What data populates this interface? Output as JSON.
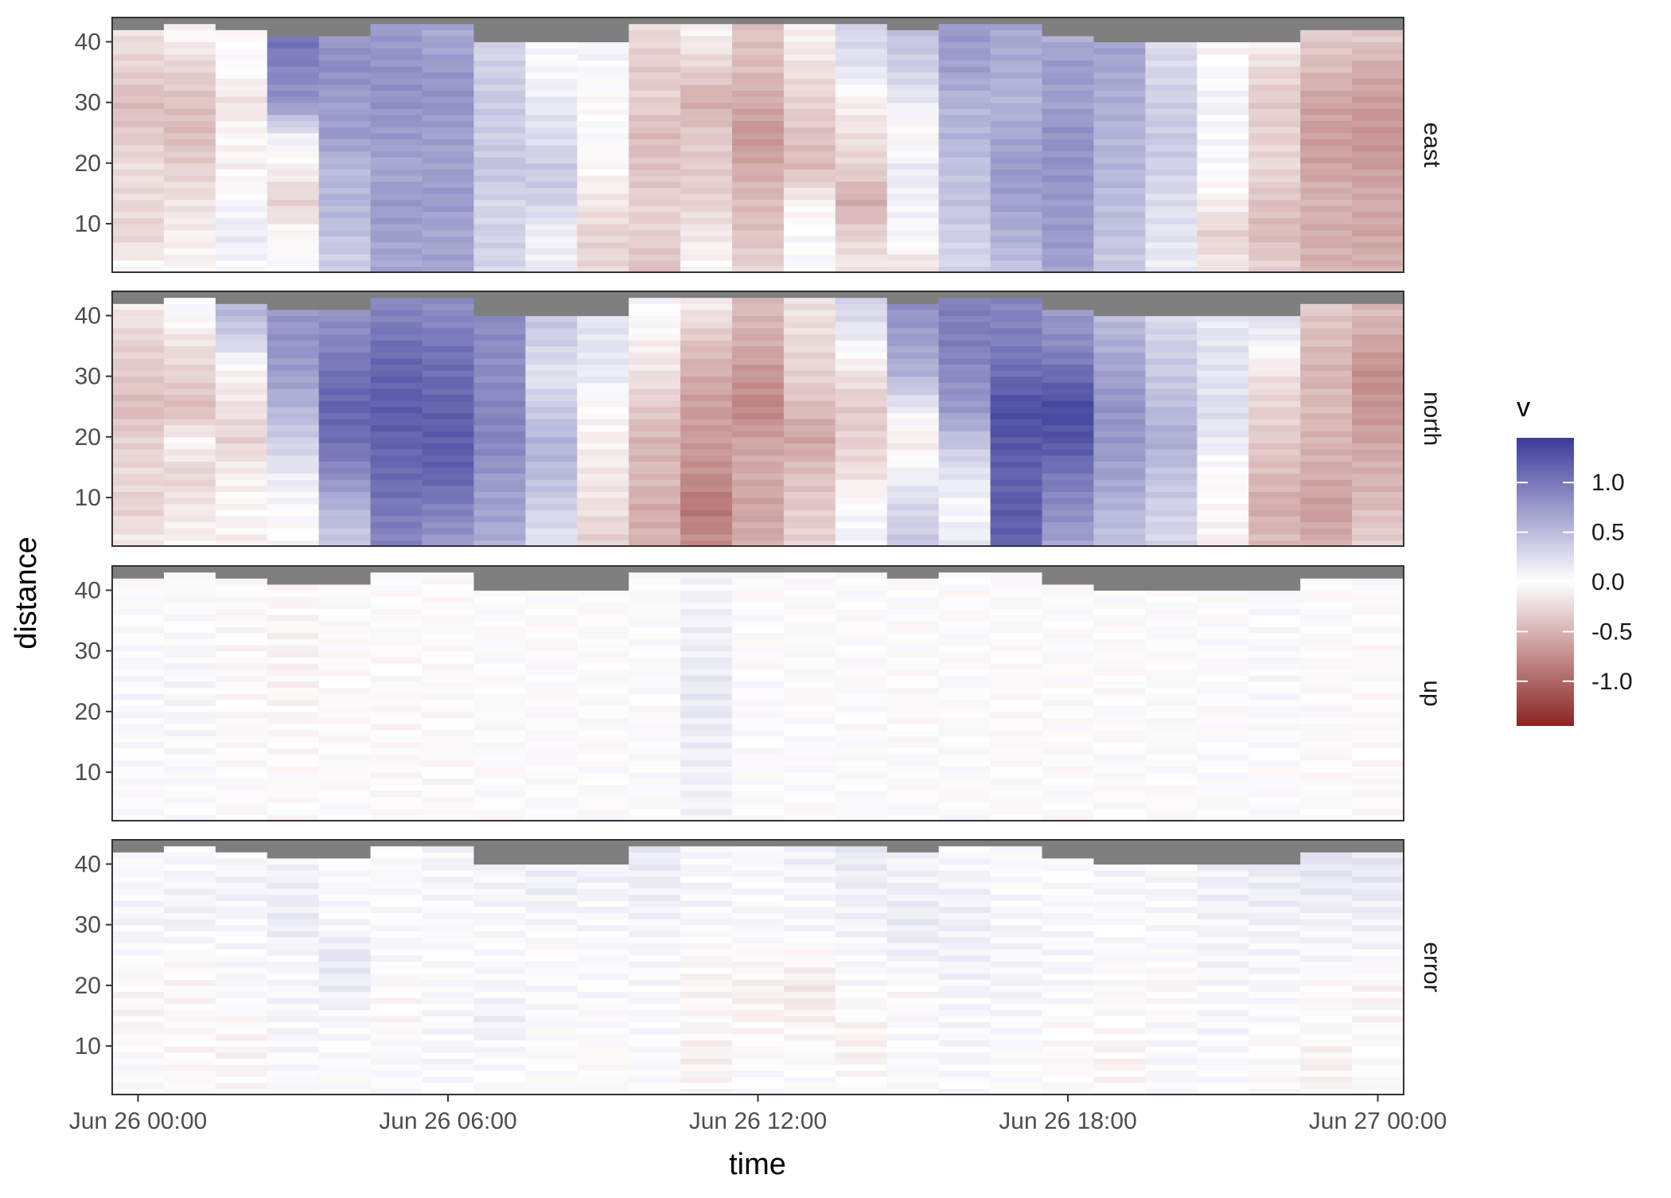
{
  "chart_data": {
    "type": "heatmap",
    "xlabel": "time",
    "ylabel": "distance",
    "x_ticks": [
      "Jun 26 00:00",
      "Jun 26 06:00",
      "Jun 26 12:00",
      "Jun 26 18:00",
      "Jun 27 00:00"
    ],
    "x_tick_hours": [
      0,
      6,
      12,
      18,
      24
    ],
    "x_range_hours": [
      -0.5,
      24.5
    ],
    "y_ticks": [
      10,
      20,
      30,
      40
    ],
    "y_range": [
      2,
      44
    ],
    "bin_height": 1,
    "ensemble_start_hours": [
      -0.5,
      0.5,
      1.5,
      2.5,
      3.5,
      4.5,
      5.5,
      6.5,
      7.5,
      8.5,
      9.5,
      10.5,
      11.5,
      12.5,
      13.5,
      14.5,
      15.5,
      16.5,
      17.5,
      18.5,
      19.5,
      20.5,
      21.5,
      22.5,
      23.5
    ],
    "ensemble_width_hours": 1,
    "valid_top": [
      41.5,
      42.5,
      41.5,
      40.5,
      40.5,
      42.5,
      42.5,
      39.5,
      39.5,
      39.5,
      42.5,
      42.5,
      42.5,
      42.5,
      42.5,
      41.5,
      42.5,
      42.5,
      40.5,
      39.5,
      39.5,
      39.5,
      39.5,
      41.5,
      41.5
    ],
    "na_color": "#7f7f7f",
    "legend": {
      "title": "v",
      "ticks": [
        1.0,
        0.5,
        0.0,
        -0.5,
        -1.0
      ],
      "tick_labels": [
        "1.0",
        "0.5",
        "0.0",
        "-0.5",
        "-1.0"
      ],
      "limits": [
        -1.45,
        1.45
      ],
      "colors": {
        "low": "#8b2323",
        "mid": "#ffffff",
        "high": "#3b3b9a"
      }
    },
    "facets": [
      {
        "label": "east",
        "profiles": [
          [
            -0.05,
            -0.28,
            -0.25,
            -0.22,
            -0.35,
            -0.45,
            -0.3,
            -0.2
          ],
          [
            -0.08,
            -0.1,
            -0.2,
            -0.3,
            -0.45,
            -0.4,
            -0.3,
            -0.05
          ],
          [
            0.05,
            0.15,
            0.05,
            -0.1,
            -0.05,
            -0.2,
            0.0,
            0.0
          ],
          [
            0.05,
            -0.05,
            -0.3,
            -0.1,
            0.15,
            0.8,
            0.9,
            1.05
          ],
          [
            0.35,
            0.45,
            0.55,
            0.5,
            0.75,
            0.7,
            0.85,
            0.75
          ],
          [
            0.65,
            0.7,
            0.75,
            0.65,
            0.75,
            0.8,
            0.8,
            0.75
          ],
          [
            0.7,
            0.65,
            0.75,
            0.7,
            0.7,
            0.8,
            0.75,
            0.65
          ],
          [
            0.3,
            0.35,
            0.3,
            0.45,
            0.35,
            0.4,
            0.35,
            0.3
          ],
          [
            0.15,
            0.1,
            0.35,
            0.4,
            0.25,
            0.15,
            0.05,
            0.05
          ],
          [
            -0.25,
            -0.3,
            -0.15,
            -0.05,
            0.05,
            -0.05,
            0.05,
            0.1
          ],
          [
            -0.4,
            -0.3,
            -0.3,
            -0.4,
            -0.45,
            -0.3,
            -0.35,
            -0.25
          ],
          [
            -0.05,
            -0.15,
            -0.3,
            -0.35,
            -0.35,
            -0.55,
            -0.3,
            -0.1
          ],
          [
            -0.3,
            -0.4,
            -0.45,
            -0.55,
            -0.7,
            -0.55,
            -0.45,
            -0.4
          ],
          [
            0.0,
            0.05,
            -0.1,
            -0.45,
            -0.4,
            -0.3,
            -0.2,
            -0.1
          ],
          [
            -0.15,
            -0.3,
            -0.55,
            -0.3,
            -0.2,
            -0.1,
            0.2,
            0.3
          ],
          [
            -0.2,
            0.05,
            0.1,
            0.15,
            -0.1,
            0.15,
            0.35,
            0.45
          ],
          [
            0.3,
            0.35,
            0.45,
            0.45,
            0.55,
            0.55,
            0.7,
            0.75
          ],
          [
            0.45,
            0.6,
            0.7,
            0.75,
            0.65,
            0.55,
            0.6,
            0.65
          ],
          [
            0.7,
            0.75,
            0.75,
            0.8,
            0.8,
            0.7,
            0.75,
            0.6
          ],
          [
            0.4,
            0.45,
            0.5,
            0.55,
            0.55,
            0.6,
            0.65,
            0.7
          ],
          [
            0.15,
            0.2,
            0.25,
            0.35,
            0.4,
            0.35,
            0.3,
            0.25
          ],
          [
            -0.15,
            -0.3,
            -0.1,
            0.05,
            0.05,
            0.1,
            0.0,
            -0.1
          ],
          [
            -0.3,
            -0.45,
            -0.4,
            -0.25,
            -0.3,
            -0.35,
            -0.25,
            -0.05
          ],
          [
            -0.5,
            -0.55,
            -0.5,
            -0.6,
            -0.65,
            -0.6,
            -0.45,
            -0.35
          ],
          [
            -0.5,
            -0.6,
            -0.55,
            -0.65,
            -0.7,
            -0.65,
            -0.55,
            -0.35
          ]
        ]
      },
      {
        "label": "north",
        "profiles": [
          [
            -0.15,
            -0.3,
            -0.25,
            -0.3,
            -0.45,
            -0.35,
            -0.3,
            -0.15
          ],
          [
            -0.1,
            -0.15,
            -0.3,
            -0.05,
            -0.45,
            -0.3,
            -0.2,
            0.05
          ],
          [
            -0.1,
            -0.05,
            -0.1,
            -0.3,
            -0.2,
            -0.1,
            0.3,
            0.55
          ],
          [
            -0.05,
            0.05,
            0.15,
            0.35,
            0.55,
            0.7,
            0.8,
            0.75
          ],
          [
            0.4,
            0.55,
            0.85,
            1.05,
            1.15,
            1.05,
            0.9,
            0.8
          ],
          [
            0.9,
            1.0,
            1.1,
            1.15,
            1.2,
            1.15,
            1.05,
            0.9
          ],
          [
            0.75,
            0.95,
            1.15,
            1.2,
            1.15,
            1.1,
            1.0,
            0.85
          ],
          [
            0.6,
            0.7,
            0.75,
            0.9,
            0.9,
            0.85,
            0.85,
            0.85
          ],
          [
            0.2,
            0.35,
            0.5,
            0.55,
            0.4,
            0.2,
            0.35,
            0.45
          ],
          [
            -0.3,
            -0.2,
            -0.15,
            -0.1,
            -0.05,
            0.15,
            0.2,
            0.2
          ],
          [
            -0.5,
            -0.55,
            -0.45,
            -0.5,
            -0.35,
            -0.2,
            -0.1,
            0.05
          ],
          [
            -0.75,
            -0.9,
            -0.75,
            -0.65,
            -0.65,
            -0.55,
            -0.4,
            -0.15
          ],
          [
            -0.55,
            -0.6,
            -0.55,
            -0.6,
            -0.8,
            -0.7,
            -0.55,
            -0.45
          ],
          [
            -0.3,
            -0.35,
            -0.4,
            -0.6,
            -0.45,
            -0.3,
            -0.25,
            -0.2
          ],
          [
            0.1,
            0.05,
            -0.2,
            -0.3,
            -0.35,
            -0.2,
            0.1,
            0.3
          ],
          [
            0.4,
            0.3,
            0.1,
            -0.15,
            0.15,
            0.55,
            0.7,
            0.8
          ],
          [
            0.15,
            0.05,
            0.2,
            0.45,
            0.75,
            0.85,
            0.95,
            0.95
          ],
          [
            1.15,
            1.2,
            1.15,
            1.25,
            1.3,
            1.1,
            0.95,
            0.9
          ],
          [
            0.7,
            0.85,
            1.0,
            1.25,
            1.35,
            1.1,
            0.85,
            0.75
          ],
          [
            0.45,
            0.55,
            0.7,
            0.75,
            0.8,
            0.7,
            0.6,
            0.45
          ],
          [
            0.3,
            0.35,
            0.45,
            0.6,
            0.5,
            0.4,
            0.35,
            0.25
          ],
          [
            -0.1,
            -0.05,
            0.0,
            0.15,
            0.25,
            0.2,
            0.2,
            0.15
          ],
          [
            -0.45,
            -0.55,
            -0.45,
            -0.35,
            -0.3,
            -0.2,
            0.1,
            0.25
          ],
          [
            -0.55,
            -0.65,
            -0.55,
            -0.5,
            -0.45,
            -0.5,
            -0.45,
            -0.35
          ],
          [
            -0.3,
            -0.45,
            -0.5,
            -0.6,
            -0.7,
            -0.75,
            -0.6,
            -0.45
          ]
        ]
      },
      {
        "label": "up",
        "profiles": [
          [
            0.01,
            0.02,
            0.03,
            0.04,
            0.05,
            0.03,
            0.02,
            0.01
          ],
          [
            0.01,
            0.02,
            0.04,
            0.05,
            0.06,
            0.04,
            0.02,
            0.01
          ],
          [
            -0.01,
            0.0,
            -0.02,
            -0.03,
            -0.03,
            -0.04,
            -0.03,
            -0.02
          ],
          [
            -0.01,
            -0.02,
            -0.03,
            -0.05,
            -0.08,
            -0.09,
            -0.06,
            -0.03
          ],
          [
            0.0,
            -0.01,
            -0.01,
            -0.02,
            -0.02,
            -0.02,
            -0.01,
            -0.01
          ],
          [
            -0.02,
            -0.03,
            -0.03,
            -0.03,
            -0.02,
            -0.02,
            -0.01,
            -0.01
          ],
          [
            -0.02,
            -0.03,
            -0.02,
            -0.02,
            -0.02,
            -0.01,
            -0.01,
            -0.01
          ],
          [
            0.0,
            0.01,
            0.01,
            0.01,
            0.0,
            0.01,
            0.0,
            0.0
          ],
          [
            0.0,
            0.01,
            0.01,
            0.0,
            0.01,
            0.0,
            0.0,
            0.0
          ],
          [
            0.0,
            0.01,
            0.0,
            0.01,
            0.0,
            0.0,
            0.0,
            0.0
          ],
          [
            0.0,
            0.01,
            0.01,
            0.02,
            0.02,
            0.01,
            0.01,
            0.0
          ],
          [
            0.08,
            0.1,
            0.12,
            0.15,
            0.16,
            0.12,
            0.1,
            0.08
          ],
          [
            0.0,
            0.01,
            0.01,
            0.02,
            0.02,
            0.01,
            0.01,
            0.0
          ],
          [
            0.0,
            0.02,
            0.02,
            0.01,
            0.01,
            0.01,
            0.0,
            0.0
          ],
          [
            0.01,
            0.01,
            0.02,
            0.02,
            0.01,
            0.01,
            0.0,
            0.0
          ],
          [
            0.0,
            0.0,
            0.0,
            -0.02,
            -0.02,
            -0.01,
            0.0,
            0.0
          ],
          [
            0.0,
            0.01,
            0.01,
            0.01,
            0.0,
            0.0,
            0.0,
            0.0
          ],
          [
            -0.01,
            -0.01,
            -0.02,
            -0.02,
            -0.02,
            -0.01,
            0.0,
            0.0
          ],
          [
            0.0,
            0.0,
            -0.01,
            -0.01,
            -0.01,
            0.0,
            0.0,
            0.0
          ],
          [
            -0.02,
            -0.02,
            -0.01,
            -0.01,
            -0.01,
            -0.01,
            0.0,
            0.0
          ],
          [
            0.0,
            0.01,
            0.01,
            0.01,
            0.01,
            0.0,
            0.0,
            0.0
          ],
          [
            0.0,
            0.01,
            0.01,
            0.01,
            0.0,
            0.01,
            0.0,
            0.0
          ],
          [
            0.0,
            0.01,
            0.02,
            0.03,
            0.04,
            0.04,
            0.03,
            0.03
          ],
          [
            0.0,
            -0.01,
            -0.01,
            -0.01,
            -0.01,
            0.0,
            0.0,
            0.0
          ],
          [
            -0.02,
            -0.03,
            -0.03,
            -0.02,
            -0.02,
            -0.02,
            -0.01,
            -0.01
          ]
        ]
      },
      {
        "label": "error",
        "profiles": [
          [
            0.02,
            0.04,
            -0.08,
            -0.06,
            0.03,
            0.08,
            0.05,
            0.02
          ],
          [
            0.0,
            -0.05,
            -0.03,
            -0.06,
            -0.02,
            0.1,
            0.08,
            0.05
          ],
          [
            -0.05,
            -0.08,
            -0.04,
            0.03,
            0.05,
            0.04,
            0.1,
            0.05
          ],
          [
            0.02,
            0.05,
            0.08,
            0.06,
            0.05,
            0.15,
            0.12,
            0.08
          ],
          [
            0.01,
            0.03,
            0.05,
            0.12,
            0.18,
            0.05,
            0.04,
            0.03
          ],
          [
            0.02,
            0.04,
            -0.04,
            -0.03,
            0.05,
            0.04,
            0.03,
            0.02
          ],
          [
            0.03,
            0.06,
            0.05,
            0.04,
            0.02,
            0.02,
            0.06,
            0.08
          ],
          [
            0.0,
            0.04,
            0.12,
            0.06,
            0.03,
            0.05,
            0.08,
            0.06
          ],
          [
            0.02,
            0.0,
            0.03,
            0.05,
            -0.04,
            0.06,
            0.12,
            0.1
          ],
          [
            0.01,
            -0.02,
            0.02,
            0.04,
            0.03,
            0.05,
            0.08,
            0.12
          ],
          [
            0.02,
            0.03,
            0.04,
            0.05,
            0.05,
            0.08,
            0.12,
            0.15
          ],
          [
            -0.06,
            -0.1,
            -0.04,
            -0.08,
            -0.05,
            0.05,
            0.07,
            0.05
          ],
          [
            0.02,
            0.03,
            -0.08,
            -0.1,
            -0.03,
            0.05,
            0.04,
            0.03
          ],
          [
            0.02,
            0.0,
            -0.08,
            -0.15,
            -0.05,
            0.08,
            0.05,
            0.1
          ],
          [
            0.01,
            -0.1,
            -0.06,
            0.04,
            0.05,
            0.08,
            0.12,
            0.15
          ],
          [
            0.02,
            0.03,
            0.05,
            -0.06,
            0.1,
            0.15,
            0.12,
            0.08
          ],
          [
            0.03,
            0.06,
            0.05,
            0.08,
            0.1,
            0.12,
            0.1,
            0.05
          ],
          [
            0.0,
            0.02,
            0.05,
            0.08,
            0.06,
            0.08,
            0.04,
            0.02
          ],
          [
            0.02,
            -0.03,
            -0.02,
            0.05,
            0.06,
            0.05,
            0.03,
            0.02
          ],
          [
            -0.05,
            -0.08,
            -0.02,
            -0.03,
            0.03,
            0.02,
            0.05,
            0.08
          ],
          [
            0.03,
            0.05,
            0.04,
            -0.06,
            0.02,
            0.04,
            0.06,
            0.05
          ],
          [
            0.02,
            0.04,
            0.06,
            0.05,
            0.08,
            0.08,
            0.1,
            0.12
          ],
          [
            -0.04,
            -0.03,
            0.02,
            0.05,
            0.06,
            0.1,
            0.12,
            0.15
          ],
          [
            -0.08,
            -0.1,
            0.02,
            -0.04,
            0.05,
            0.08,
            0.15,
            0.2
          ],
          [
            0.0,
            0.03,
            -0.06,
            -0.08,
            0.05,
            0.1,
            0.15,
            0.18
          ]
        ]
      }
    ]
  }
}
